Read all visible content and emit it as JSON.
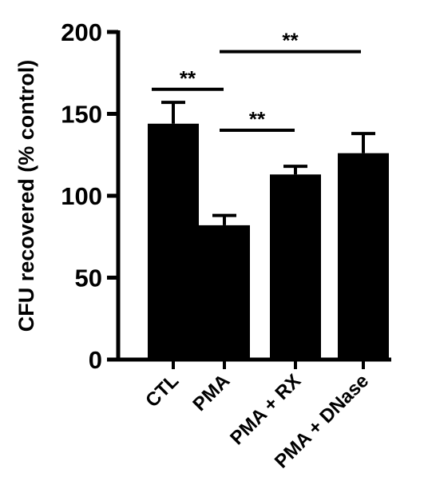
{
  "chart_data": {
    "type": "bar",
    "ylabel": "CFU recovered (% control)",
    "ylim": [
      0,
      200
    ],
    "yticks": [
      0,
      50,
      100,
      150,
      200
    ],
    "categories": [
      "CTL",
      "PMA",
      "PMA + RX",
      "PMA + DNase"
    ],
    "values": [
      144,
      82,
      113,
      126
    ],
    "errors": [
      13,
      6,
      5,
      12
    ],
    "bar_color": "#000000",
    "significance": [
      {
        "from": 0,
        "to": 1,
        "label": "**",
        "y": 165
      },
      {
        "from": 1,
        "to": 2,
        "label": "**",
        "y": 140
      },
      {
        "from": 1,
        "to": 3,
        "label": "**",
        "y": 188
      }
    ]
  }
}
